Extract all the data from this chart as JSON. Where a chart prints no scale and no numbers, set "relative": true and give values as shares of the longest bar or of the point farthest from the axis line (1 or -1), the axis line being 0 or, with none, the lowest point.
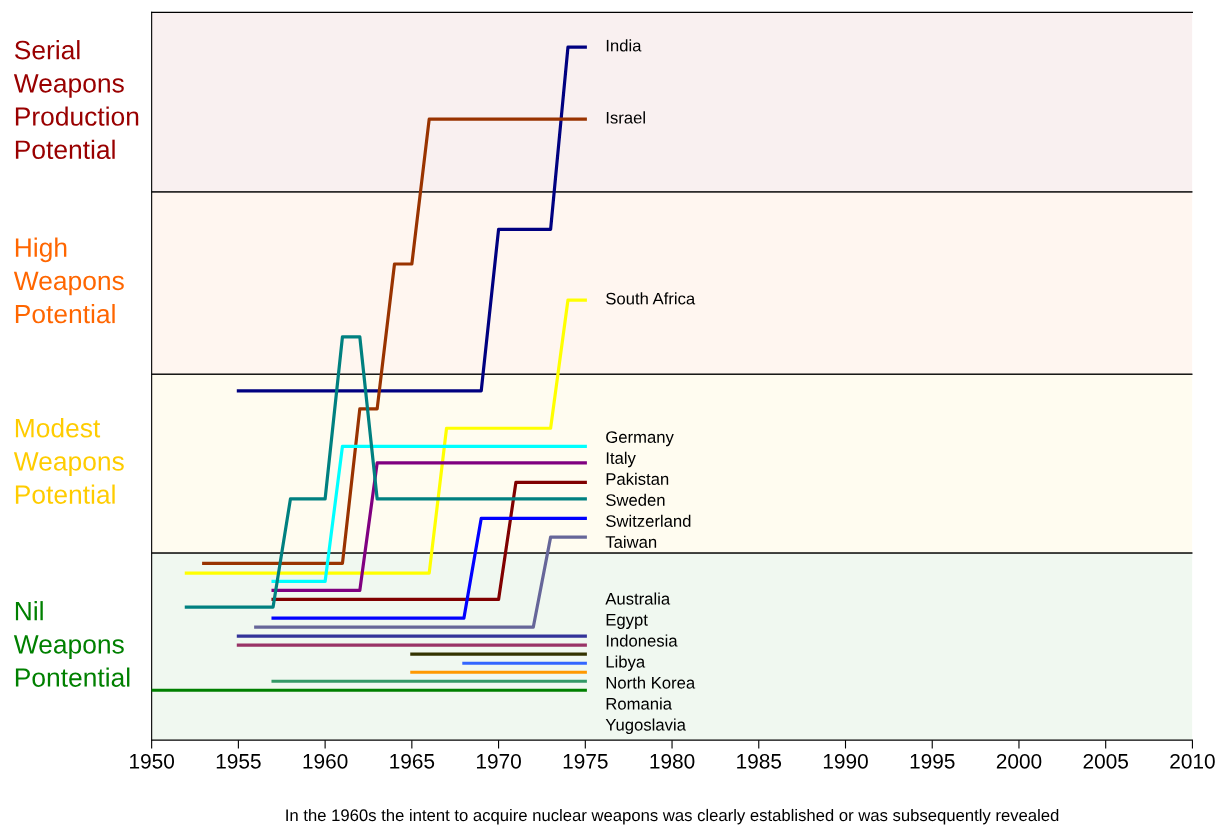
{
  "chart_data": {
    "type": "line",
    "relative": true,
    "xlabel": "In the 1960s the intent to acquire nuclear weapons was clearly established or was subsequently revealed",
    "xlim": [
      1950,
      2010
    ],
    "xticks": [
      1950,
      1955,
      1960,
      1965,
      1970,
      1975,
      1980,
      1985,
      1990,
      1995,
      2000,
      2005,
      2010
    ],
    "tick_labels": "x",
    "grid": false,
    "legend": false,
    "marker": "none",
    "line_style": "solid",
    "bands": [
      {
        "axis": "y",
        "from": 0,
        "to": 0.27,
        "label": "Nil\nWeapons\nPontential",
        "color": "#008000"
      },
      {
        "axis": "y",
        "from": 0.27,
        "to": 0.528,
        "label": "Modest\nWeapons\nPotential",
        "color": "#ffcc00"
      },
      {
        "axis": "y",
        "from": 0.528,
        "to": 0.791,
        "label": "High\nWeapons\nPotential",
        "color": "#ff6600"
      },
      {
        "axis": "y",
        "from": 0.791,
        "to": 1.05,
        "label": "Serial\nWeapons\nProduction\nPotential",
        "color": "#990000"
      }
    ],
    "series": [
      {
        "name": "India",
        "color": "#000080",
        "x": [
          1955,
          1969,
          1970,
          1973,
          1974,
          1975
        ],
        "values": [
          0.504,
          0.504,
          0.737,
          0.737,
          1.0,
          1.0
        ]
      },
      {
        "name": "Israel",
        "color": "#993300",
        "x": [
          1953,
          1961,
          1962,
          1963,
          1964,
          1965,
          1966,
          1975
        ],
        "values": [
          0.255,
          0.255,
          0.478,
          0.478,
          0.687,
          0.687,
          0.896,
          0.896
        ]
      },
      {
        "name": "South Africa",
        "color": "#ffff00",
        "x": [
          1952,
          1966,
          1967,
          1973,
          1974,
          1975
        ],
        "values": [
          0.241,
          0.241,
          0.45,
          0.45,
          0.635,
          0.635
        ]
      },
      {
        "name": "Germany",
        "color": "#00ffff",
        "x": [
          1957,
          1960,
          1961,
          1975
        ],
        "values": [
          0.229,
          0.229,
          0.424,
          0.424
        ]
      },
      {
        "name": "Italy",
        "color": "#800080",
        "x": [
          1957,
          1962,
          1963,
          1975
        ],
        "values": [
          0.216,
          0.216,
          0.4,
          0.4
        ]
      },
      {
        "name": "Pakistan",
        "color": "#800000",
        "x": [
          1957,
          1970,
          1971,
          1975
        ],
        "values": [
          0.203,
          0.203,
          0.372,
          0.372
        ]
      },
      {
        "name": "Sweden",
        "color": "#008080",
        "x": [
          1952,
          1957,
          1958,
          1960,
          1961,
          1962,
          1963,
          1975
        ],
        "values": [
          0.192,
          0.192,
          0.348,
          0.348,
          0.582,
          0.582,
          0.348,
          0.348
        ]
      },
      {
        "name": "Switzerland",
        "color": "#0000ff",
        "x": [
          1957,
          1968,
          1969,
          1975
        ],
        "values": [
          0.176,
          0.176,
          0.32,
          0.32
        ]
      },
      {
        "name": "Taiwan",
        "color": "#666699",
        "x": [
          1956,
          1972,
          1973,
          1975
        ],
        "values": [
          0.163,
          0.163,
          0.293,
          0.293
        ]
      },
      {
        "name": "Australia",
        "color": "#333399",
        "x": [
          1955,
          1975
        ],
        "values": [
          0.15,
          0.15
        ]
      },
      {
        "name": "Egypt",
        "color": "#993366",
        "x": [
          1955,
          1975
        ],
        "values": [
          0.137,
          0.137
        ]
      },
      {
        "name": "Indonesia",
        "color": "#333300",
        "x": [
          1965,
          1975
        ],
        "values": [
          0.124,
          0.124
        ]
      },
      {
        "name": "Libya",
        "color": "#3366ff",
        "x": [
          1968,
          1975
        ],
        "values": [
          0.111,
          0.111
        ]
      },
      {
        "name": "North Korea",
        "color": "#ff9900",
        "x": [
          1965,
          1975
        ],
        "values": [
          0.098,
          0.098
        ]
      },
      {
        "name": "Romania",
        "color": "#339966",
        "x": [
          1957,
          1975
        ],
        "values": [
          0.085,
          0.085
        ]
      },
      {
        "name": "Yugoslavia",
        "color": "#008000",
        "x": [
          1950,
          1975
        ],
        "values": [
          0.072,
          0.072
        ]
      }
    ]
  }
}
